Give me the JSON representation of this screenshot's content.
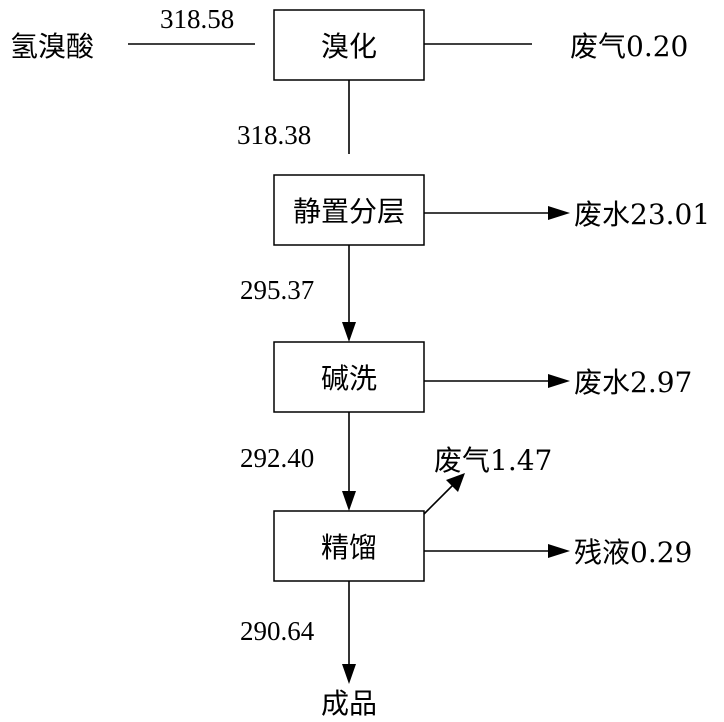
{
  "nodes": {
    "bromination": "溴化",
    "settle": "静置分层",
    "alkali_wash": "碱洗",
    "distill": "精馏"
  },
  "inputs": {
    "hbr_label": "氢溴酸",
    "hbr_value": "318.58"
  },
  "outputs": {
    "gas1": "废气0.20",
    "water1": "废水23.01",
    "water2": "废水2.97",
    "gas2": "废气1.47",
    "residue": "残液0.29",
    "product": "成品"
  },
  "flows": {
    "f1": "318.38",
    "f2": "295.37",
    "f3": "292.40",
    "f4": "290.64"
  }
}
